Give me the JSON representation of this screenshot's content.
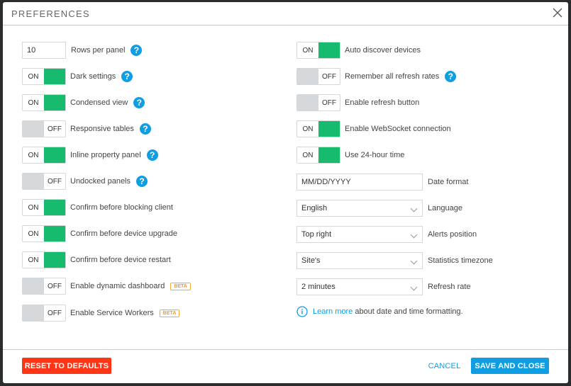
{
  "dialog": {
    "title": "PREFERENCES"
  },
  "left": [
    {
      "type": "input",
      "value": "10",
      "label": "Rows per panel",
      "help": true
    },
    {
      "type": "toggle",
      "state": "ON",
      "label": "Dark settings",
      "help": true
    },
    {
      "type": "toggle",
      "state": "ON",
      "label": "Condensed view",
      "help": true
    },
    {
      "type": "toggle",
      "state": "OFF",
      "label": "Responsive tables",
      "help": true
    },
    {
      "type": "toggle",
      "state": "ON",
      "label": "Inline property panel",
      "help": true
    },
    {
      "type": "toggle",
      "state": "OFF",
      "label": "Undocked panels",
      "help": true
    },
    {
      "type": "toggle",
      "state": "ON",
      "label": "Confirm before blocking client"
    },
    {
      "type": "toggle",
      "state": "ON",
      "label": "Confirm before device upgrade"
    },
    {
      "type": "toggle",
      "state": "ON",
      "label": "Confirm before device restart"
    },
    {
      "type": "toggle",
      "state": "OFF",
      "label": "Enable dynamic dashboard",
      "badge": "BETA"
    },
    {
      "type": "toggle",
      "state": "OFF",
      "label": "Enable Service Workers",
      "badge": "BETA"
    }
  ],
  "right": [
    {
      "type": "toggle",
      "state": "ON",
      "label": "Auto discover devices"
    },
    {
      "type": "toggle",
      "state": "OFF",
      "label": "Remember all refresh rates",
      "help": true
    },
    {
      "type": "toggle",
      "state": "OFF",
      "label": "Enable refresh button"
    },
    {
      "type": "toggle",
      "state": "ON",
      "label": "Enable WebSocket connection"
    },
    {
      "type": "toggle",
      "state": "ON",
      "label": "Use 24-hour time"
    },
    {
      "type": "text",
      "value": "MM/DD/YYYY",
      "label": "Date format"
    },
    {
      "type": "select",
      "value": "English",
      "label": "Language"
    },
    {
      "type": "select",
      "value": "Top right",
      "label": "Alerts position"
    },
    {
      "type": "select",
      "value": "Site's",
      "label": "Statistics timezone"
    },
    {
      "type": "select",
      "value": "2 minutes",
      "label": "Refresh rate"
    }
  ],
  "info": {
    "link": "Learn more",
    "text": " about date and time formatting."
  },
  "footer": {
    "reset": "RESET TO DEFAULTS",
    "cancel": "CANCEL",
    "save": "SAVE AND CLOSE"
  },
  "colors": {
    "on": "#18bb6e",
    "accent": "#109ee2",
    "danger": "#ff3516",
    "beta": "#f29a1d"
  }
}
